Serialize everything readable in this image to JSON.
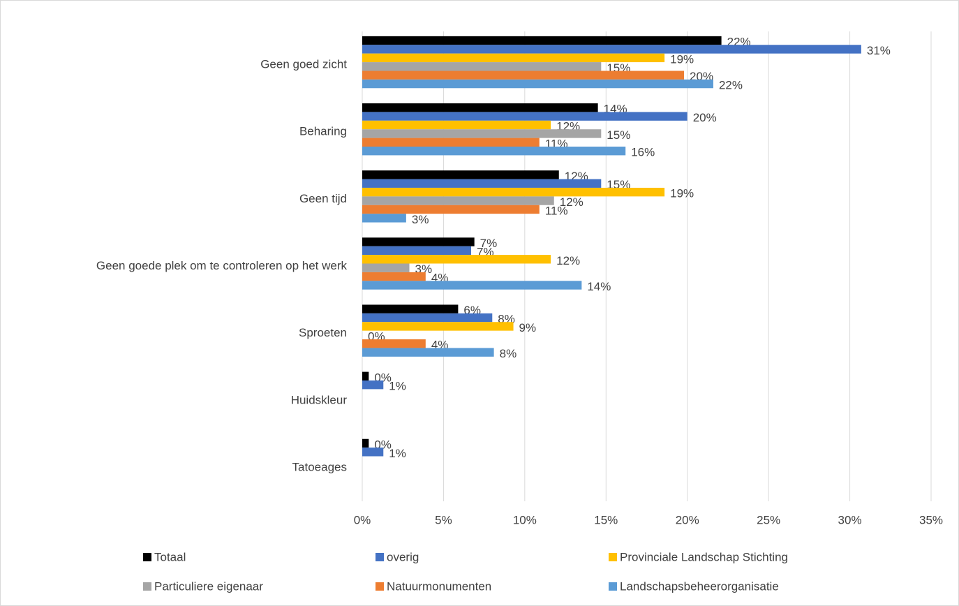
{
  "chart_data": {
    "type": "bar",
    "orientation": "horizontal",
    "categories": [
      "Geen goed zicht",
      "Beharing",
      "Geen tijd",
      "Geen goede plek om te controleren op het werk",
      "Sproeten",
      "Huidskleur",
      "Tatoeages"
    ],
    "series": [
      {
        "name": "Totaal",
        "color": "#000000",
        "values": [
          22.1,
          14.5,
          12.1,
          6.9,
          5.9,
          0.4,
          0.4
        ],
        "value_labels": [
          "22%",
          "14%",
          "12%",
          "7%",
          "6%",
          "0%",
          "0%"
        ]
      },
      {
        "name": "overig",
        "color": "#4472c4",
        "values": [
          30.7,
          20.0,
          14.7,
          6.7,
          8.0,
          1.3,
          1.3
        ],
        "value_labels": [
          "31%",
          "20%",
          "15%",
          "7%",
          "8%",
          "1%",
          "1%"
        ]
      },
      {
        "name": "Provinciale Landschap Stichting",
        "color": "#ffc000",
        "values": [
          18.6,
          11.6,
          18.6,
          11.6,
          9.3,
          null,
          null
        ],
        "value_labels": [
          "19%",
          "12%",
          "19%",
          "12%",
          "9%",
          null,
          null
        ]
      },
      {
        "name": "Particuliere eigenaar",
        "color": "#a5a5a5",
        "values": [
          14.7,
          14.7,
          11.8,
          2.9,
          0,
          null,
          null
        ],
        "value_labels": [
          "15%",
          "15%",
          "12%",
          "3%",
          "0%",
          null,
          null
        ]
      },
      {
        "name": "Natuurmonumenten",
        "color": "#ed7d31",
        "values": [
          19.8,
          10.9,
          10.9,
          3.9,
          3.9,
          null,
          null
        ],
        "value_labels": [
          "20%",
          "11%",
          "11%",
          "4%",
          "4%",
          null,
          null
        ]
      },
      {
        "name": "Landschapsbeheerorganisatie",
        "color": "#5b9bd5",
        "values": [
          21.6,
          16.2,
          2.7,
          13.5,
          8.1,
          null,
          null
        ],
        "value_labels": [
          "22%",
          "16%",
          "3%",
          "14%",
          "8%",
          null,
          null
        ]
      }
    ],
    "xlim": [
      0,
      35
    ],
    "xticks": [
      {
        "value": 0,
        "label": "0%"
      },
      {
        "value": 5,
        "label": "5%"
      },
      {
        "value": 10,
        "label": "10%"
      },
      {
        "value": 15,
        "label": "15%"
      },
      {
        "value": 20,
        "label": "20%"
      },
      {
        "value": 25,
        "label": "25%"
      },
      {
        "value": 30,
        "label": "30%"
      },
      {
        "value": 35,
        "label": "35%"
      }
    ],
    "grid": true,
    "legend": "bottom"
  }
}
